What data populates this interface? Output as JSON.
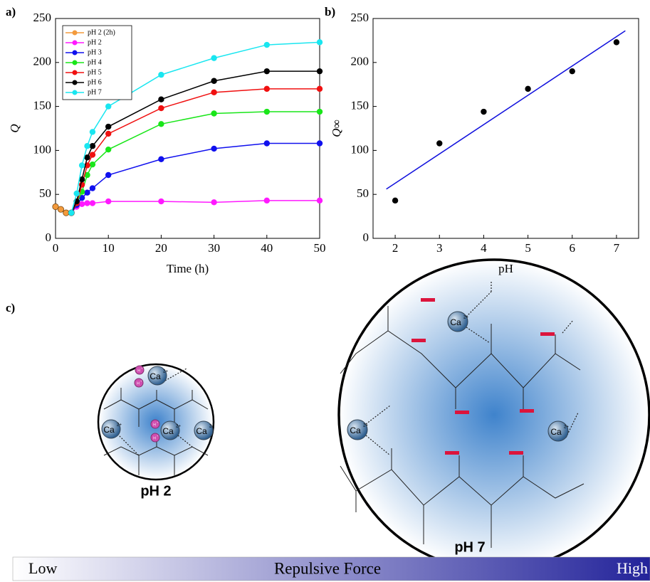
{
  "chart_data": [
    {
      "type": "line",
      "panel": "a)",
      "xlabel": "Time (h)",
      "ylabel": "Q",
      "xlim": [
        0,
        50
      ],
      "xticks": [
        0,
        10,
        20,
        30,
        40,
        50
      ],
      "ylim": [
        0,
        250
      ],
      "yticks": [
        0,
        50,
        100,
        150,
        200,
        250
      ],
      "legend": "upper left",
      "series": [
        {
          "name": "pH 2 (2h)",
          "color": "#f39a3c",
          "x": [
            0,
            1,
            2,
            3
          ],
          "values": [
            36,
            33,
            29,
            29
          ]
        },
        {
          "name": "pH 2",
          "color": "#ff19ff",
          "x": [
            3,
            4,
            5,
            6,
            7,
            10,
            20,
            30,
            40,
            50
          ],
          "values": [
            29,
            36,
            39,
            40,
            40,
            42,
            42,
            41,
            43,
            43
          ]
        },
        {
          "name": "pH 3",
          "color": "#1010ee",
          "x": [
            3,
            4,
            5,
            6,
            7,
            10,
            20,
            30,
            40,
            50
          ],
          "values": [
            29,
            38,
            46,
            52,
            57,
            72,
            90,
            102,
            108,
            108
          ]
        },
        {
          "name": "pH 4",
          "color": "#19e619",
          "x": [
            3,
            4,
            5,
            6,
            7,
            10,
            20,
            30,
            40,
            50
          ],
          "values": [
            29,
            40,
            53,
            72,
            84,
            101,
            130,
            142,
            144,
            144
          ]
        },
        {
          "name": "pH 5",
          "color": "#f01010",
          "x": [
            3,
            4,
            5,
            6,
            7,
            10,
            20,
            30,
            40,
            50
          ],
          "values": [
            29,
            40,
            61,
            83,
            95,
            119,
            148,
            166,
            170,
            170
          ]
        },
        {
          "name": "pH 6",
          "color": "#000000",
          "x": [
            3,
            4,
            5,
            6,
            7,
            10,
            20,
            30,
            40,
            50
          ],
          "values": [
            29,
            42,
            67,
            92,
            105,
            127,
            158,
            179,
            190,
            190
          ]
        },
        {
          "name": "pH 7",
          "color": "#19e6f0",
          "x": [
            3,
            4,
            5,
            6,
            7,
            10,
            20,
            30,
            40,
            50
          ],
          "values": [
            29,
            51,
            83,
            105,
            121,
            150,
            186,
            205,
            220,
            223
          ]
        }
      ]
    },
    {
      "type": "scatter",
      "panel": "b)",
      "xlabel": "pH",
      "ylabel": "Q∞",
      "xlim": [
        1.5,
        7.5
      ],
      "xticks": [
        2,
        3,
        4,
        5,
        6,
        7
      ],
      "ylim": [
        0,
        250
      ],
      "yticks": [
        0,
        50,
        100,
        150,
        200,
        250
      ],
      "series": [
        {
          "color": "#000000",
          "x": [
            2,
            3,
            4,
            5,
            6,
            7
          ],
          "values": [
            43,
            108,
            144,
            170,
            190,
            223
          ]
        },
        {
          "color": "#1010dd",
          "style": "line",
          "x": [
            1.8,
            7.2
          ],
          "values": [
            56,
            236
          ]
        }
      ]
    }
  ],
  "diagram": {
    "panel": "c)",
    "left_label": "pH 2",
    "right_label": "pH 7",
    "ion": "Ca",
    "ion_charge": "2+",
    "proton": "H",
    "proton_charge": "+",
    "scale": {
      "low": "Low",
      "title": "Repulsive Force",
      "high": "High"
    }
  }
}
